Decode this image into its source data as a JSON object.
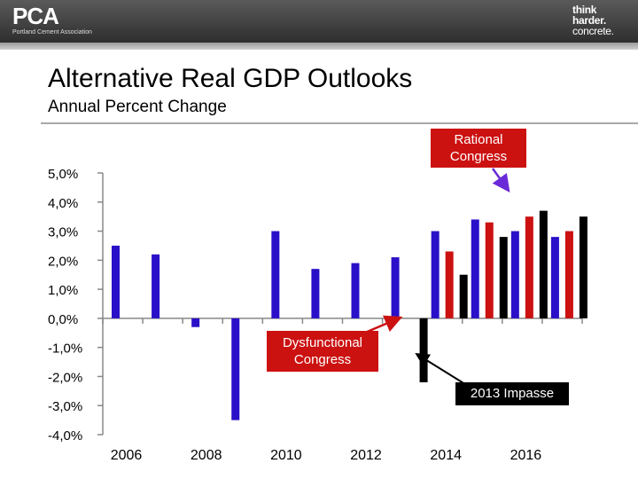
{
  "header": {
    "logo_mark": "PCA",
    "logo_sub": "Portland Cement Association",
    "tagline": [
      "think",
      "harder.",
      "concrete."
    ]
  },
  "slide": {
    "title": "Alternative Real GDP Outlooks",
    "subtitle": "Annual Percent Change"
  },
  "annotations": {
    "rational": [
      "Rational",
      "Congress"
    ],
    "dysfunctional": [
      "Dysfunctional",
      "Congress"
    ],
    "impasse": "2013 Impasse"
  },
  "colors": {
    "baseline": "#2a10c8",
    "dysfunctional": "#cc1111",
    "impasse": "#000000",
    "arrow_blue": "#6a2ad8"
  },
  "chart_data": {
    "type": "bar",
    "title": "Alternative Real GDP Outlooks",
    "subtitle": "Annual Percent Change",
    "ylim": [
      -4,
      5
    ],
    "ytick_labels": [
      "5,0%",
      "4,0%",
      "3,0%",
      "2,0%",
      "1,0%",
      "0,0%",
      "-1,0%",
      "-2,0%",
      "-3,0%",
      "-4,0%"
    ],
    "yticks": [
      5,
      4,
      3,
      2,
      1,
      0,
      -1,
      -2,
      -3,
      -4
    ],
    "xtick_labels": [
      "2006",
      "2008",
      "2010",
      "2012",
      "2014",
      "2016"
    ],
    "xtick_years": [
      2006,
      2008,
      2010,
      2012,
      2014,
      2016
    ],
    "years": [
      2006,
      2007,
      2008,
      2009,
      2010,
      2011,
      2012,
      2013,
      2014,
      2015,
      2016,
      2017
    ],
    "grid": false,
    "series": [
      {
        "name": "Rational Congress",
        "color": "#2a10c8",
        "values": [
          2.5,
          2.2,
          -0.3,
          -3.5,
          3.0,
          1.7,
          1.9,
          2.1,
          3.0,
          3.4,
          3.0,
          2.8
        ]
      },
      {
        "name": "Dysfunctional Congress",
        "color": "#cc1111",
        "values": [
          null,
          null,
          null,
          null,
          null,
          null,
          null,
          null,
          2.3,
          3.3,
          3.5,
          3.0
        ]
      },
      {
        "name": "2013 Impasse",
        "color": "#000000",
        "values": [
          null,
          null,
          null,
          null,
          null,
          null,
          null,
          -2.2,
          1.5,
          2.8,
          3.7,
          3.5
        ]
      }
    ]
  }
}
